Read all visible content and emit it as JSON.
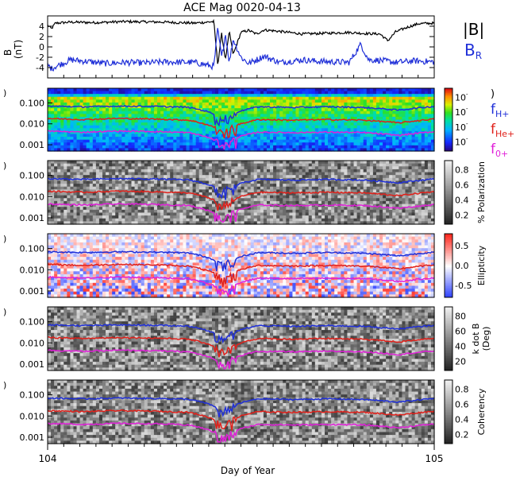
{
  "title": "ACE Mag 0020-04-13",
  "xaxis": {
    "label": "Day of Year",
    "start_label": "104",
    "end_label": "105",
    "range": [
      104,
      105
    ]
  },
  "legend": {
    "panel1": [
      {
        "label": "|B|",
        "color": "#000000"
      },
      {
        "label": "B_R",
        "main": "B",
        "sub": "R",
        "color": "#1f2fd8"
      }
    ],
    "panel2": [
      {
        "main": "f",
        "sub": "H+",
        "color": "#1f2fd8"
      },
      {
        "main": "f",
        "sub": "He+",
        "color": "#e0201a"
      },
      {
        "main": "f",
        "sub": "0+",
        "color": "#e020d8"
      }
    ]
  },
  "colors": {
    "H": "#1f2fd8",
    "He": "#e0201a",
    "O": "#e020d8",
    "B": "#000000",
    "BR": "#1f2fd8"
  },
  "chart_data": [
    {
      "type": "line",
      "ylabel": "B (nT)",
      "ylabel_top": "B",
      "ylabel_bottom": "(nT)",
      "yticks": [
        "4",
        "2",
        "0",
        "-2",
        "-4"
      ],
      "ylim": [
        -6,
        6
      ],
      "series": [
        {
          "name": "|B|",
          "x": [
            104.0,
            104.01,
            104.02,
            104.06,
            104.12,
            104.2,
            104.3,
            104.38,
            104.43,
            104.44,
            104.45,
            104.46,
            104.47,
            104.48,
            104.5,
            104.52,
            104.54,
            104.56,
            104.6,
            104.66,
            104.7,
            104.78,
            104.82,
            104.86,
            104.88,
            104.9,
            104.93,
            104.96,
            105.0
          ],
          "values": [
            4.2,
            3.5,
            4.6,
            4.8,
            4.7,
            4.9,
            4.8,
            4.6,
            4.9,
            -3.5,
            2.5,
            -2.5,
            3.0,
            -1.5,
            2.8,
            3.2,
            2.5,
            3.3,
            3.0,
            2.5,
            2.6,
            2.8,
            2.6,
            2.5,
            1.2,
            2.9,
            3.8,
            4.5,
            4.6
          ]
        },
        {
          "name": "B_R",
          "x": [
            104.0,
            104.01,
            104.02,
            104.06,
            104.1,
            104.15,
            104.2,
            104.25,
            104.3,
            104.38,
            104.43,
            104.44,
            104.45,
            104.46,
            104.47,
            104.48,
            104.5,
            104.52,
            104.56,
            104.6,
            104.66,
            104.7,
            104.78,
            104.81,
            104.83,
            104.86,
            104.9,
            104.95,
            105.0
          ],
          "values": [
            -3.5,
            -4.2,
            -3.8,
            -2.5,
            -2.8,
            -3.2,
            -3.0,
            -3.1,
            -2.9,
            -3.0,
            -3.8,
            3.5,
            -2.0,
            2.5,
            -3.0,
            1.5,
            -2.0,
            -3.2,
            -1.8,
            -3.0,
            -2.5,
            -2.8,
            -3.0,
            0.5,
            -2.5,
            -2.6,
            -3.0,
            -2.7,
            -2.9
          ]
        }
      ]
    },
    {
      "type": "heatmap",
      "ylabel": "",
      "yticks": [
        "0.100",
        "0.010",
        "0.001"
      ],
      "yscale": "log",
      "ylim": [
        0.0005,
        0.5
      ],
      "colorbar": {
        "ticks": [
          "10",
          "10",
          "10",
          "10"
        ],
        "scheme": "rainbow"
      },
      "series": [
        {
          "name": "fH+",
          "values": [
            0.07,
            0.065,
            0.07,
            0.068,
            0.062,
            0.018,
            0.065,
            0.06,
            0.065,
            0.06,
            0.045,
            0.068
          ]
        },
        {
          "name": "fHe+",
          "values": [
            0.018,
            0.016,
            0.018,
            0.017,
            0.015,
            0.004,
            0.016,
            0.015,
            0.016,
            0.015,
            0.011,
            0.017
          ]
        },
        {
          "name": "f0+",
          "values": [
            0.0045,
            0.004,
            0.0045,
            0.0043,
            0.0038,
            0.001,
            0.004,
            0.0038,
            0.004,
            0.0038,
            0.0028,
            0.0042
          ]
        }
      ]
    },
    {
      "type": "heatmap",
      "ylabel": "",
      "yticks": [
        "0.100",
        "0.010",
        "0.001"
      ],
      "colorbar": {
        "label": "% Polarization",
        "ticks": [
          "0.8",
          "0.6",
          "0.4",
          "0.2"
        ],
        "scheme": "gray"
      }
    },
    {
      "type": "heatmap",
      "ylabel": "",
      "yticks": [
        "0.100",
        "0.010",
        "0.001"
      ],
      "colorbar": {
        "label": "Ellipticity",
        "ticks": [
          "0.5",
          "0.0",
          "-0.5"
        ],
        "scheme": "bluewhitered"
      }
    },
    {
      "type": "heatmap",
      "ylabel": "",
      "yticks": [
        "0.100",
        "0.010",
        "0.001"
      ],
      "colorbar": {
        "label": "k dot B (Deg)",
        "label_top": "k dot B",
        "label_bottom": "(Deg)",
        "ticks": [
          "80",
          "60",
          "40",
          "20"
        ],
        "scheme": "gray"
      }
    },
    {
      "type": "heatmap",
      "ylabel": "",
      "yticks": [
        "0.100",
        "0.010",
        "0.001"
      ],
      "colorbar": {
        "label": "Coherency",
        "ticks": [
          "0.8",
          "0.6",
          "0.4",
          "0.2"
        ],
        "scheme": "gray"
      }
    }
  ]
}
